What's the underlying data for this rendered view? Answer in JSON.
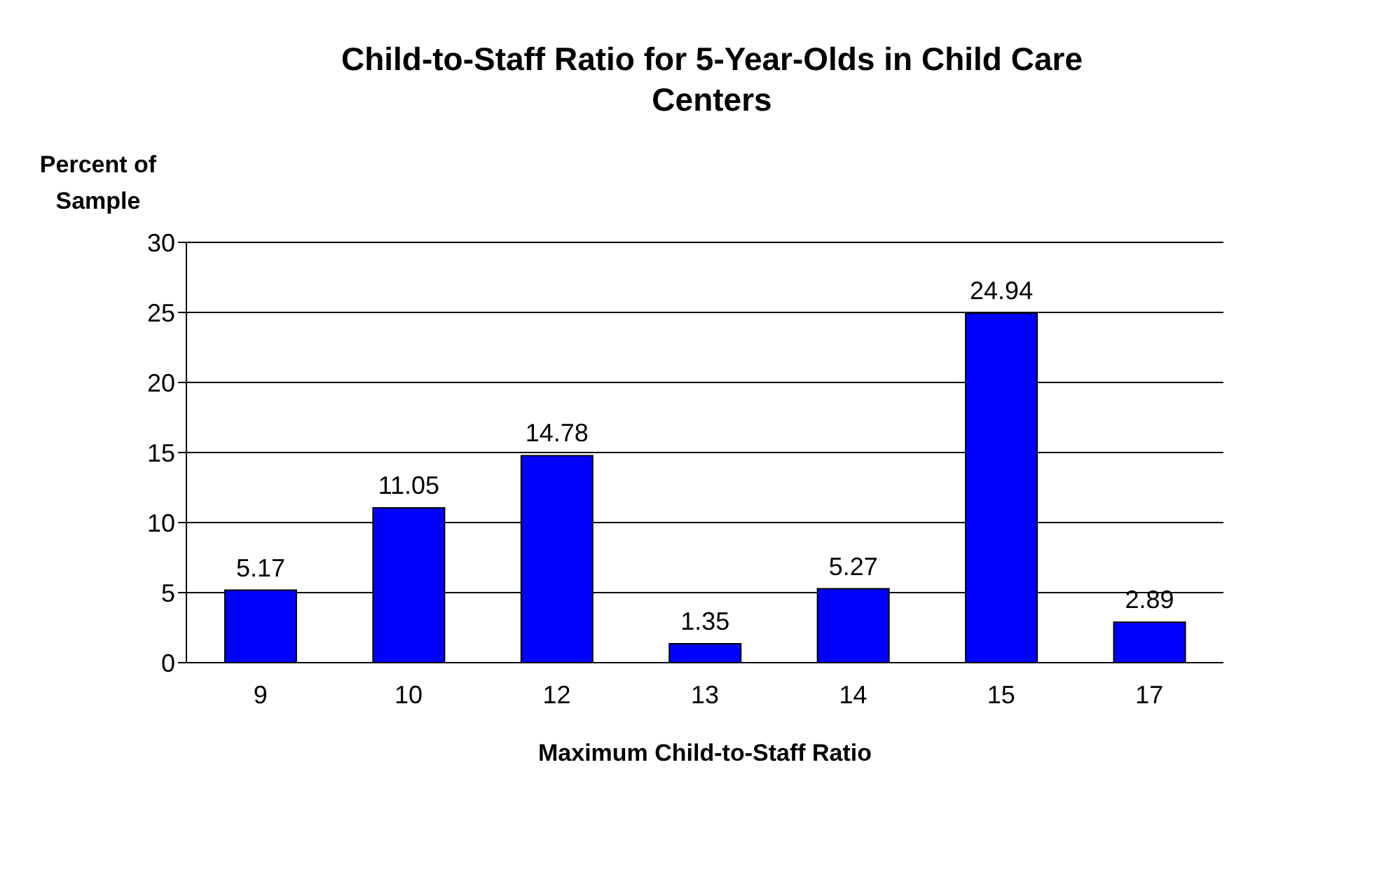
{
  "chart_data": {
    "type": "bar",
    "title": "Child-to-Staff Ratio for 5-Year-Olds in Child Care Centers",
    "xlabel": "Maximum Child-to-Staff Ratio",
    "ylabel": "Percent of Sample",
    "categories": [
      "9",
      "10",
      "12",
      "13",
      "14",
      "15",
      "17"
    ],
    "values": [
      5.17,
      11.05,
      14.78,
      1.35,
      5.27,
      24.94,
      2.89
    ],
    "color": "#0000ff",
    "ylim": [
      0,
      30
    ],
    "yticks": [
      0,
      5,
      10,
      15,
      20,
      25,
      30
    ],
    "grid": "y",
    "data_labels": true,
    "legend": false
  }
}
